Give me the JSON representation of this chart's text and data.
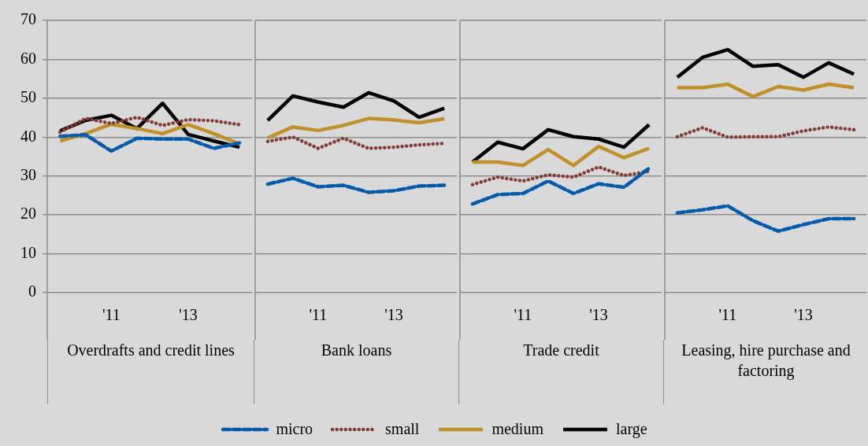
{
  "chart_data": [
    {
      "type": "line",
      "xlabel": "Overdrafts and credit lines",
      "categories": [
        null,
        null,
        "'11",
        null,
        null,
        "'13",
        null,
        null
      ],
      "ylim": [
        0,
        70
      ],
      "yticks": [
        0,
        10,
        20,
        30,
        40,
        50,
        60,
        70
      ],
      "grid": "y",
      "marker": "none",
      "legend": "bottom",
      "series": [
        {
          "name": "micro",
          "color": "#005bab",
          "line_style": "dashed",
          "values": [
            40.2,
            40.6,
            36.4,
            39.7,
            39.5,
            39.5,
            37.1,
            38.5
          ]
        },
        {
          "name": "small",
          "color": "#843c39",
          "line_style": "dotted",
          "values": [
            41.3,
            44.8,
            43.5,
            45.1,
            43.0,
            44.5,
            44.2,
            43.2
          ]
        },
        {
          "name": "medium",
          "color": "#c0902a",
          "line_style": "solid",
          "values": [
            39.0,
            40.9,
            43.3,
            42.2,
            40.9,
            43.2,
            40.9,
            38.2
          ]
        },
        {
          "name": "large",
          "color": "#000000",
          "line_style": "solid",
          "values": [
            41.6,
            44.3,
            45.6,
            42.2,
            48.7,
            40.7,
            39.0,
            37.4
          ]
        }
      ]
    },
    {
      "type": "line",
      "xlabel": "Bank loans",
      "categories": [
        null,
        null,
        "'11",
        null,
        null,
        "'13",
        null,
        null
      ],
      "ylim": [
        0,
        70
      ],
      "yticks": [
        0,
        10,
        20,
        30,
        40,
        50,
        60,
        70
      ],
      "grid": "y",
      "marker": "none",
      "tick_labels": "x",
      "series": [
        {
          "color": "#005bab",
          "line_style": "dashed",
          "values": [
            27.9,
            29.4,
            27.2,
            27.6,
            25.8,
            26.2,
            27.4,
            27.6
          ]
        },
        {
          "color": "#843c39",
          "line_style": "dotted",
          "values": [
            38.9,
            40.0,
            37.1,
            39.7,
            37.1,
            37.4,
            38.0,
            38.4
          ]
        },
        {
          "color": "#c0902a",
          "line_style": "solid",
          "values": [
            39.8,
            42.6,
            41.7,
            43.0,
            44.8,
            44.4,
            43.7,
            44.7
          ]
        },
        {
          "color": "#000000",
          "line_style": "solid",
          "values": [
            44.3,
            50.6,
            49.0,
            47.7,
            51.4,
            49.3,
            45.1,
            47.4
          ]
        }
      ]
    },
    {
      "type": "line",
      "xlabel": "Trade credit",
      "categories": [
        null,
        null,
        "'11",
        null,
        null,
        "'13",
        null,
        null
      ],
      "ylim": [
        0,
        70
      ],
      "yticks": [
        0,
        10,
        20,
        30,
        40,
        50,
        60,
        70
      ],
      "grid": "y",
      "marker": "none",
      "tick_labels": "x",
      "series": [
        {
          "color": "#005bab",
          "line_style": "dashed",
          "values": [
            22.8,
            25.2,
            25.5,
            28.7,
            25.5,
            28.0,
            27.1,
            32.0
          ]
        },
        {
          "color": "#843c39",
          "line_style": "dotted",
          "values": [
            27.8,
            29.7,
            28.7,
            30.3,
            29.7,
            32.3,
            30.1,
            31.2
          ]
        },
        {
          "color": "#c0902a",
          "line_style": "solid",
          "values": [
            33.6,
            33.6,
            32.7,
            36.8,
            32.7,
            37.6,
            34.7,
            37.1
          ]
        },
        {
          "color": "#000000",
          "line_style": "solid",
          "values": [
            33.6,
            38.7,
            37.0,
            41.9,
            40.1,
            39.5,
            37.4,
            43.2
          ]
        }
      ]
    },
    {
      "type": "line",
      "xlabel": "Leasing, hire purchase and factoring",
      "categories": [
        null,
        null,
        "'11",
        null,
        null,
        "'13",
        null,
        null
      ],
      "ylim": [
        0,
        70
      ],
      "yticks": [
        0,
        10,
        20,
        30,
        40,
        50,
        60,
        70
      ],
      "grid": "y",
      "marker": "none",
      "tick_labels": "x",
      "series": [
        {
          "color": "#005bab",
          "line_style": "dashed",
          "values": [
            20.5,
            21.3,
            22.3,
            18.5,
            15.8,
            17.5,
            19.0,
            19.0
          ]
        },
        {
          "color": "#843c39",
          "line_style": "dotted",
          "values": [
            40.1,
            42.4,
            40.0,
            40.1,
            40.1,
            41.6,
            42.6,
            41.9
          ]
        },
        {
          "color": "#c0902a",
          "line_style": "solid",
          "values": [
            52.7,
            52.7,
            53.6,
            50.4,
            53.0,
            52.1,
            53.6,
            52.7
          ]
        },
        {
          "color": "#000000",
          "line_style": "solid",
          "values": [
            55.4,
            60.5,
            62.5,
            58.2,
            58.6,
            55.4,
            59.1,
            56.2
          ]
        }
      ]
    }
  ]
}
